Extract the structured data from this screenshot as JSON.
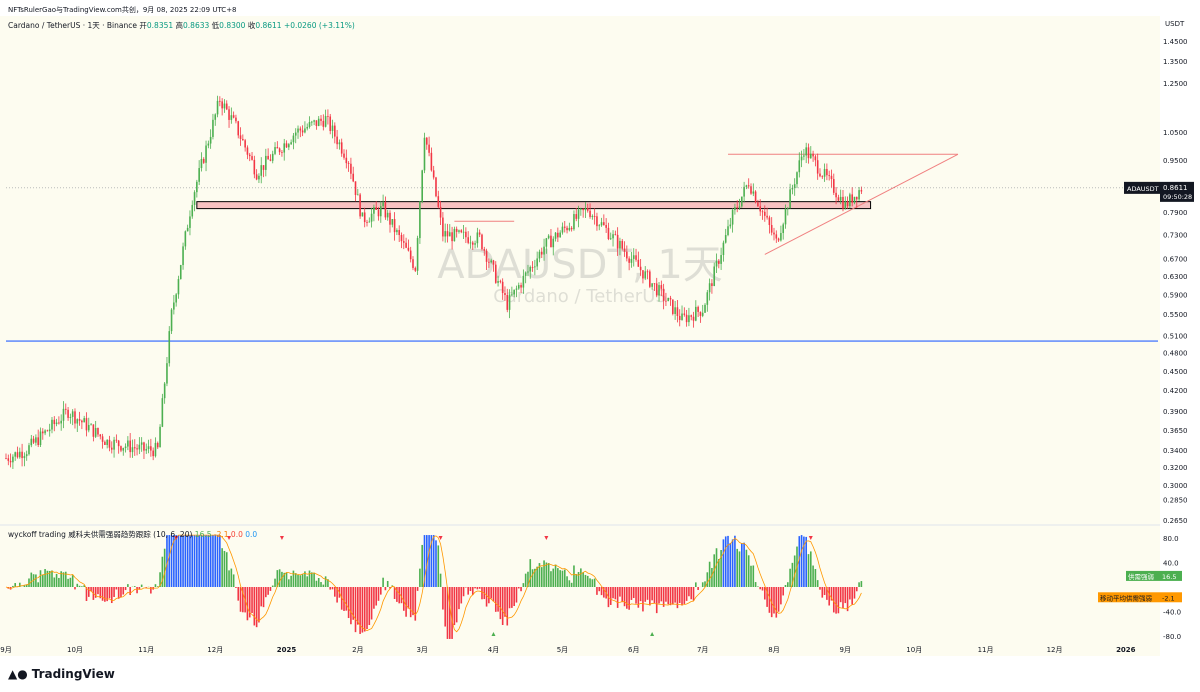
{
  "header": {
    "attribution": "NFTsRulerGao与TradingView.com共创，9月 08, 2025 22:09 UTC+8"
  },
  "symbol_line": {
    "name": "Cardano / TetherUS · 1天 · Binance",
    "open_label": "开",
    "open": "0.8351",
    "high_label": "高",
    "high": "0.8633",
    "low_label": "低",
    "low": "0.8300",
    "close_label": "收",
    "close": "0.8611",
    "change": "+0.0260 (+3.11%)"
  },
  "currency": "USDT",
  "watermark": {
    "ticker": "ADAUSDT, 1天",
    "name": "Cardano / TetherUS"
  },
  "price_tag": {
    "ticker": "ADAUSDT",
    "price": "0.8611",
    "countdown": "09:50:28"
  },
  "indicator": {
    "title": "wyckoff trading 威科夫供需强弱趋势跟踪 (10, 6, 20)",
    "v1": "16.5",
    "v2": "-2.1",
    "v3": "0.0",
    "v4": "0.0",
    "label_strength": "供需强弱",
    "value_strength": "16.5",
    "label_ma": "移动平均供需强弱",
    "value_ma": "-2.1"
  },
  "footer": {
    "brand": "TradingView",
    "logo": "tradingview-logo-icon"
  },
  "colors": {
    "up": "#4caf50",
    "down": "#f23645",
    "ma": "#ff9800",
    "blue": "#2962ff",
    "zone": "#f7c1c1",
    "bg": "#fdfcf0"
  },
  "chart_data": [
    {
      "type": "candlestick",
      "title": "",
      "price_axis": {
        "scale": "log",
        "ticks": [
          1.45,
          1.35,
          1.25,
          1.05,
          0.95,
          0.79,
          0.73,
          0.67,
          0.63,
          0.59,
          0.55,
          0.51,
          0.48,
          0.45,
          0.42,
          0.39,
          0.365,
          0.34,
          0.32,
          0.3,
          0.285,
          0.265
        ],
        "tick_labels": [
          "1.4500",
          "1.3500",
          "1.2500",
          "1.0500",
          "0.9500",
          "0.7900",
          "0.7300",
          "0.6700",
          "0.6300",
          "0.5900",
          "0.5500",
          "0.5100",
          "0.4800",
          "0.4500",
          "0.4200",
          "0.3900",
          "0.3650",
          "0.3400",
          "0.3200",
          "0.3000",
          "0.2850",
          "0.2650"
        ]
      },
      "time_axis": {
        "labels": [
          "9月",
          "10月",
          "11月",
          "12月",
          "2025",
          "2月",
          "3月",
          "4月",
          "5月",
          "6月",
          "7月",
          "8月",
          "9月",
          "10月",
          "11月",
          "12月",
          "2026"
        ],
        "months": [
          "2024-09",
          "2024-10",
          "2024-11",
          "2024-12",
          "2025-01",
          "2025-02",
          "2025-03",
          "2025-04",
          "2025-05",
          "2025-06",
          "2025-07",
          "2025-08",
          "2025-09",
          "2025-10",
          "2025-11",
          "2025-12",
          "2026-01"
        ]
      },
      "price_path": [
        [
          "2024-09-01",
          0.33
        ],
        [
          "2024-09-10",
          0.34
        ],
        [
          "2024-09-28",
          0.39
        ],
        [
          "2024-10-15",
          0.35
        ],
        [
          "2024-10-31",
          0.34
        ],
        [
          "2024-11-06",
          0.34
        ],
        [
          "2024-11-12",
          0.55
        ],
        [
          "2024-11-21",
          0.83
        ],
        [
          "2024-12-03",
          1.18
        ],
        [
          "2024-12-10",
          1.07
        ],
        [
          "2024-12-19",
          0.91
        ],
        [
          "2025-01-05",
          1.05
        ],
        [
          "2025-01-18",
          1.1
        ],
        [
          "2025-01-28",
          0.95
        ],
        [
          "2025-02-03",
          0.77
        ],
        [
          "2025-02-12",
          0.8
        ],
        [
          "2025-02-26",
          0.65
        ],
        [
          "2025-03-02",
          1.05
        ],
        [
          "2025-03-10",
          0.73
        ],
        [
          "2025-03-26",
          0.72
        ],
        [
          "2025-04-07",
          0.57
        ],
        [
          "2025-04-23",
          0.7
        ],
        [
          "2025-05-12",
          0.8
        ],
        [
          "2025-05-31",
          0.67
        ],
        [
          "2025-06-22",
          0.54
        ],
        [
          "2025-07-01",
          0.56
        ],
        [
          "2025-07-14",
          0.78
        ],
        [
          "2025-07-21",
          0.88
        ],
        [
          "2025-08-02",
          0.71
        ],
        [
          "2025-08-14",
          0.99
        ],
        [
          "2025-08-25",
          0.88
        ],
        [
          "2025-09-01",
          0.81
        ],
        [
          "2025-09-08",
          0.861
        ]
      ],
      "levels": {
        "horizontal_support": 0.5,
        "resistance_zone": [
          0.8,
          0.82
        ],
        "triangle_top": 0.97
      },
      "last_price": 0.8611
    },
    {
      "type": "bar",
      "title": "wyckoff trading 威科夫供需强弱趋势跟踪 (10, 6, 20)",
      "y_ticks": [
        80,
        40,
        -40,
        -80
      ],
      "y_tick_labels": [
        "80.0",
        "40.0",
        "-40.0",
        "-80.0"
      ],
      "ylim": [
        -90,
        90
      ],
      "series": [
        {
          "name": "供需强弱",
          "last": 16.5
        },
        {
          "name": "移动平均供需强弱",
          "last": -2.1
        }
      ]
    }
  ]
}
